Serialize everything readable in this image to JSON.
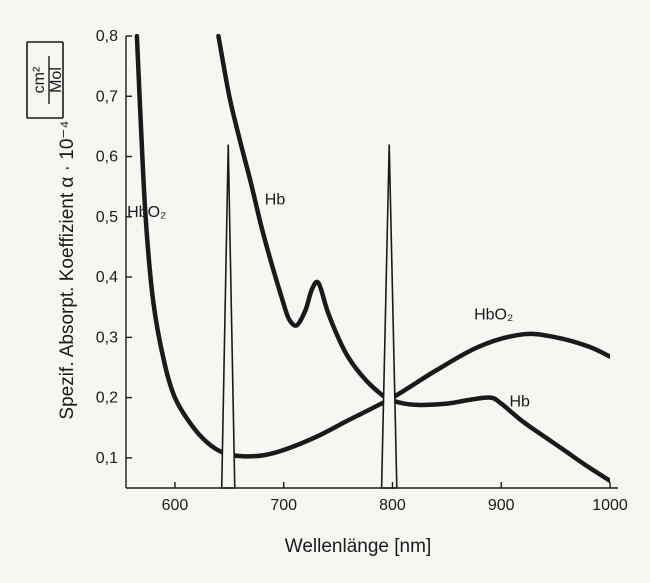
{
  "chart_data": {
    "type": "line",
    "title": "",
    "xlabel": "Wellenlänge [nm]",
    "ylabel": "Spezif. Absorpt. Koeffizient α · 10⁻⁴",
    "ylabel_unit_num": "cm²",
    "ylabel_unit_den": "Mol",
    "xlim": [
      555,
      1000
    ],
    "ylim": [
      0.05,
      0.8
    ],
    "x_ticks": [
      600,
      700,
      800,
      900,
      1000
    ],
    "y_ticks": [
      0.1,
      0.2,
      0.3,
      0.4,
      0.5,
      0.6,
      0.7,
      0.8
    ],
    "x_tick_labels": [
      "600",
      "700",
      "800",
      "900",
      "1000"
    ],
    "y_tick_labels": [
      "0,1",
      "0,2",
      "0,3",
      "0,4",
      "0,5",
      "0,6",
      "0,7",
      "0,8"
    ],
    "grid": false,
    "series": [
      {
        "name": "HbO₂",
        "label_position": [
          "left",
          "right"
        ],
        "x": [
          565,
          568,
          573,
          580,
          590,
          600,
          615,
          630,
          645,
          660,
          680,
          700,
          730,
          760,
          800,
          840,
          880,
          920,
          950,
          980,
          1000
        ],
        "y": [
          0.8,
          0.68,
          0.5,
          0.36,
          0.26,
          0.2,
          0.155,
          0.125,
          0.108,
          0.103,
          0.104,
          0.113,
          0.135,
          0.163,
          0.2,
          0.245,
          0.285,
          0.305,
          0.3,
          0.285,
          0.268
        ]
      },
      {
        "name": "Hb",
        "label_position": [
          "middle",
          "right"
        ],
        "x": [
          640,
          650,
          660,
          670,
          680,
          690,
          700,
          705,
          712,
          720,
          726,
          732,
          740,
          750,
          760,
          775,
          790,
          800,
          820,
          850,
          870,
          890,
          900,
          920,
          940,
          960,
          980,
          1000
        ],
        "y": [
          0.8,
          0.7,
          0.625,
          0.555,
          0.48,
          0.415,
          0.355,
          0.33,
          0.32,
          0.345,
          0.38,
          0.39,
          0.345,
          0.3,
          0.265,
          0.23,
          0.205,
          0.195,
          0.188,
          0.19,
          0.196,
          0.2,
          0.19,
          0.16,
          0.135,
          0.11,
          0.085,
          0.062
        ]
      }
    ],
    "spikes": [
      {
        "center": 649,
        "half_width": 6,
        "peak": 0.62
      },
      {
        "center": 797,
        "half_width": 7,
        "peak": 0.62
      }
    ]
  }
}
